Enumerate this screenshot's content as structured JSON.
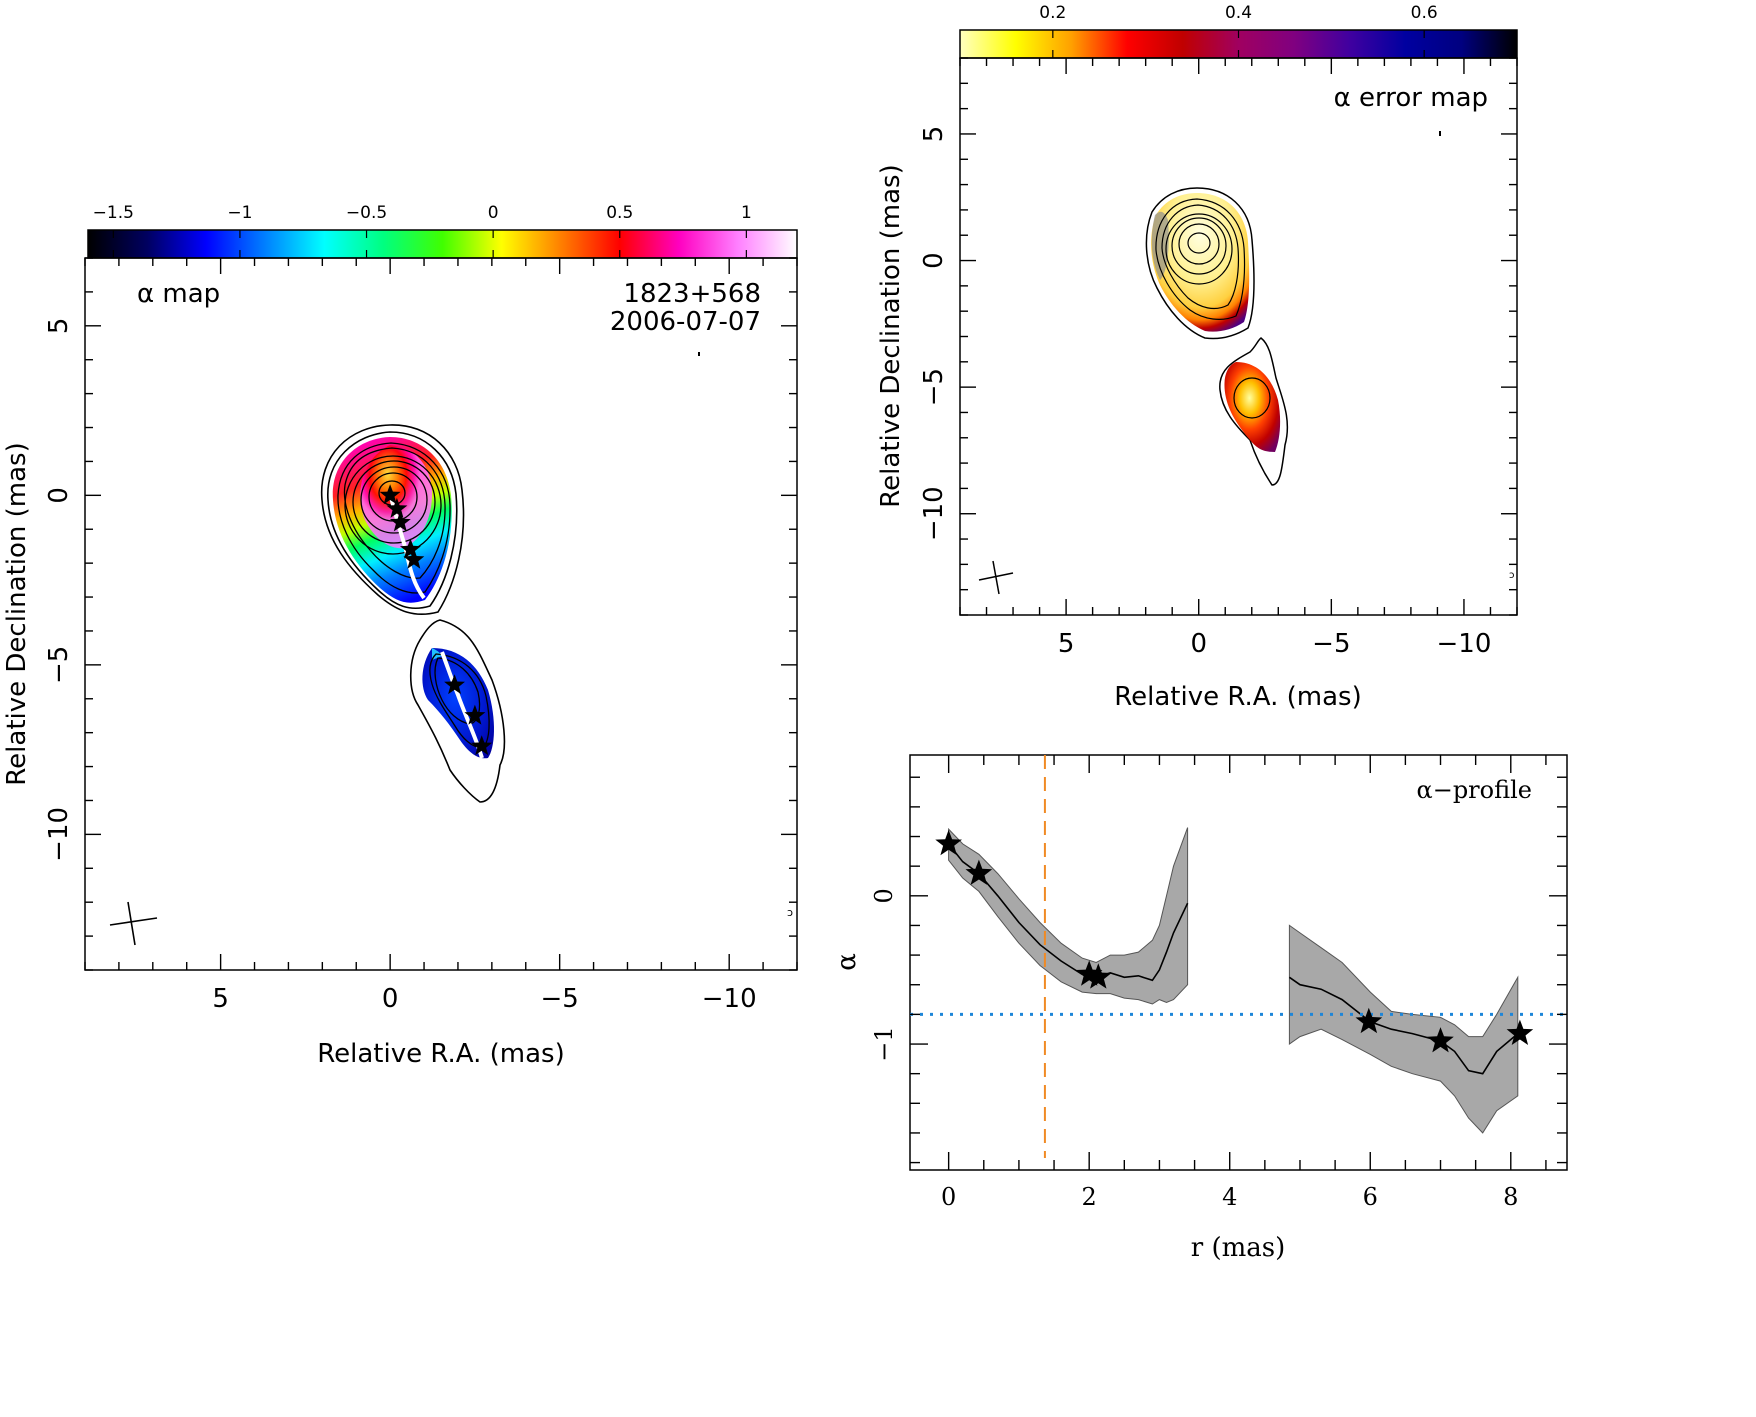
{
  "chart_data": [
    {
      "panel": "alpha-map",
      "type": "heatmap",
      "title": "α map",
      "source": "1823+568",
      "date": "2006-07-07",
      "xlabel": "Relative R.A. (mas)",
      "ylabel": "Relative Declination (mas)",
      "xlim": [
        9.0,
        -12.0
      ],
      "ylim": [
        -14.0,
        7.0
      ],
      "xticks": [
        5,
        0,
        -5,
        -10
      ],
      "yticks": [
        5,
        0,
        -5,
        -10
      ],
      "xtick_labels": [
        "5",
        "0",
        "−5",
        "−10"
      ],
      "ytick_labels": [
        "5",
        "0",
        "−5",
        "−10"
      ],
      "colorbar": {
        "range": [
          -1.6,
          1.2
        ],
        "ticks": [
          -1.5,
          -1,
          -0.5,
          0,
          0.5,
          1
        ],
        "tick_labels": [
          "−1.5",
          "−1",
          "−0.5",
          "0",
          "0.5",
          "1"
        ],
        "colors": [
          "#000000",
          "#000060",
          "#0000ff",
          "#0080ff",
          "#00ffff",
          "#00ff80",
          "#40ff00",
          "#ffff00",
          "#ff8000",
          "#ff0000",
          "#ff00c0",
          "#ff80ff",
          "#ffffff"
        ]
      },
      "star_positions": [
        {
          "ra": 0.0,
          "dec": 0.0
        },
        {
          "ra": -0.2,
          "dec": -0.4
        },
        {
          "ra": -0.3,
          "dec": -0.8
        },
        {
          "ra": -0.6,
          "dec": -1.6
        },
        {
          "ra": -0.7,
          "dec": -1.9
        },
        {
          "ra": -1.9,
          "dec": -5.6
        },
        {
          "ra": -2.5,
          "dec": -6.5
        },
        {
          "ra": -2.7,
          "dec": -7.4
        }
      ]
    },
    {
      "panel": "alpha-error-map",
      "type": "heatmap",
      "title": "α error map",
      "xlabel": "Relative R.A. (mas)",
      "ylabel": "Relative Declination (mas)",
      "xlim": [
        9.0,
        -12.0
      ],
      "ylim": [
        -14.0,
        8.0
      ],
      "xticks": [
        5,
        0,
        -5,
        -10
      ],
      "yticks": [
        5,
        0,
        -5,
        -10
      ],
      "xtick_labels": [
        "5",
        "0",
        "−5",
        "−10"
      ],
      "ytick_labels": [
        "5",
        "0",
        "−5",
        "−10"
      ],
      "colorbar": {
        "range": [
          0.1,
          0.7
        ],
        "ticks": [
          0.2,
          0.4,
          0.6
        ],
        "tick_labels": [
          "0.2",
          "0.4",
          "0.6"
        ],
        "colors": [
          "#ffffc0",
          "#ffff00",
          "#ffa000",
          "#ff0000",
          "#c00000",
          "#a00060",
          "#800080",
          "#4000a0",
          "#0000a0",
          "#000080",
          "#000000"
        ]
      }
    },
    {
      "panel": "alpha-profile",
      "type": "line",
      "title": "α−profile",
      "xlabel": "r (mas)",
      "ylabel": "α",
      "xlim": [
        -0.55,
        8.8
      ],
      "ylim": [
        -1.85,
        0.95
      ],
      "xticks": [
        0,
        2,
        4,
        6,
        8
      ],
      "yticks": [
        0,
        -1
      ],
      "xtick_labels": [
        "0",
        "2",
        "4",
        "6",
        "8"
      ],
      "ytick_labels": [
        "0",
        "−1"
      ],
      "vline_x": 1.37,
      "hline_y": -0.8,
      "series": [
        {
          "x": [
            0.0,
            0.2,
            0.43,
            0.7,
            1.0,
            1.3,
            1.6,
            1.9,
            2.1,
            2.3,
            2.5,
            2.7,
            2.9,
            3.0,
            3.1,
            3.2,
            3.4
          ],
          "y": [
            0.35,
            0.23,
            0.15,
            0.0,
            -0.18,
            -0.33,
            -0.44,
            -0.53,
            -0.55,
            -0.52,
            -0.55,
            -0.54,
            -0.57,
            -0.5,
            -0.38,
            -0.25,
            -0.05
          ],
          "upper": [
            0.45,
            0.35,
            0.28,
            0.15,
            -0.02,
            -0.18,
            -0.32,
            -0.42,
            -0.45,
            -0.4,
            -0.4,
            -0.38,
            -0.3,
            -0.2,
            0.0,
            0.2,
            0.46
          ],
          "lower": [
            0.24,
            0.12,
            0.03,
            -0.14,
            -0.32,
            -0.47,
            -0.58,
            -0.65,
            -0.66,
            -0.66,
            -0.69,
            -0.7,
            -0.73,
            -0.7,
            -0.72,
            -0.7,
            -0.6
          ]
        },
        {
          "x": [
            4.85,
            5.0,
            5.3,
            5.6,
            6.0,
            6.3,
            6.6,
            7.0,
            7.2,
            7.4,
            7.6,
            7.8,
            8.1
          ],
          "y": [
            -0.55,
            -0.6,
            -0.63,
            -0.7,
            -0.85,
            -0.9,
            -0.93,
            -0.98,
            -1.05,
            -1.18,
            -1.2,
            -1.05,
            -0.93
          ],
          "upper": [
            -0.2,
            -0.25,
            -0.35,
            -0.45,
            -0.65,
            -0.78,
            -0.8,
            -0.82,
            -0.87,
            -0.95,
            -0.95,
            -0.8,
            -0.55
          ],
          "lower": [
            -1.0,
            -0.95,
            -0.9,
            -0.97,
            -1.07,
            -1.15,
            -1.2,
            -1.25,
            -1.35,
            -1.5,
            -1.6,
            -1.45,
            -1.35
          ]
        }
      ],
      "star_points": [
        {
          "x": 0.0,
          "y": 0.35
        },
        {
          "x": 0.43,
          "y": 0.15
        },
        {
          "x": 2.0,
          "y": -0.53
        },
        {
          "x": 2.13,
          "y": -0.55
        },
        {
          "x": 5.98,
          "y": -0.85
        },
        {
          "x": 7.0,
          "y": -0.98
        },
        {
          "x": 8.13,
          "y": -0.93
        }
      ],
      "colors": {
        "band": "#a8a8a8",
        "vline": "#f08a24",
        "hline": "#1f86d8",
        "line": "#000000"
      }
    }
  ]
}
